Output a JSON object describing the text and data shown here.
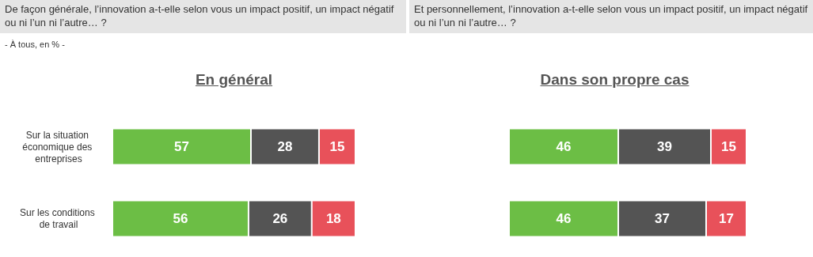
{
  "chart_data": [
    {
      "type": "bar",
      "orientation": "horizontal",
      "stacked": true,
      "data_labels": true,
      "title": "En général",
      "subtitle": "De façon générale, l’innovation a-t-elle selon vous un impact positif, un impact négatif ou ni l’un ni l’autre… ?",
      "annotations": [
        "- À tous, en % -"
      ],
      "categories": [
        "Sur la situation économique des entreprises",
        "Sur les conditions de travail"
      ],
      "series": [
        {
          "color": "#6cbe45",
          "values": [
            57,
            56
          ]
        },
        {
          "color": "#545454",
          "values": [
            28,
            26
          ]
        },
        {
          "color": "#e8515a",
          "values": [
            15,
            18
          ]
        }
      ]
    },
    {
      "type": "bar",
      "orientation": "horizontal",
      "stacked": true,
      "data_labels": true,
      "title": "Dans son propre cas",
      "subtitle": "Et personnellement, l’innovation a-t-elle selon vous un impact positif, un impact négatif ou ni l’un ni l’autre… ?",
      "categories": [
        null,
        null
      ],
      "series": [
        {
          "color": "#6cbe45",
          "values": [
            46,
            46
          ]
        },
        {
          "color": "#545454",
          "values": [
            39,
            37
          ]
        },
        {
          "color": "#e8515a",
          "values": [
            15,
            17
          ]
        }
      ]
    }
  ]
}
